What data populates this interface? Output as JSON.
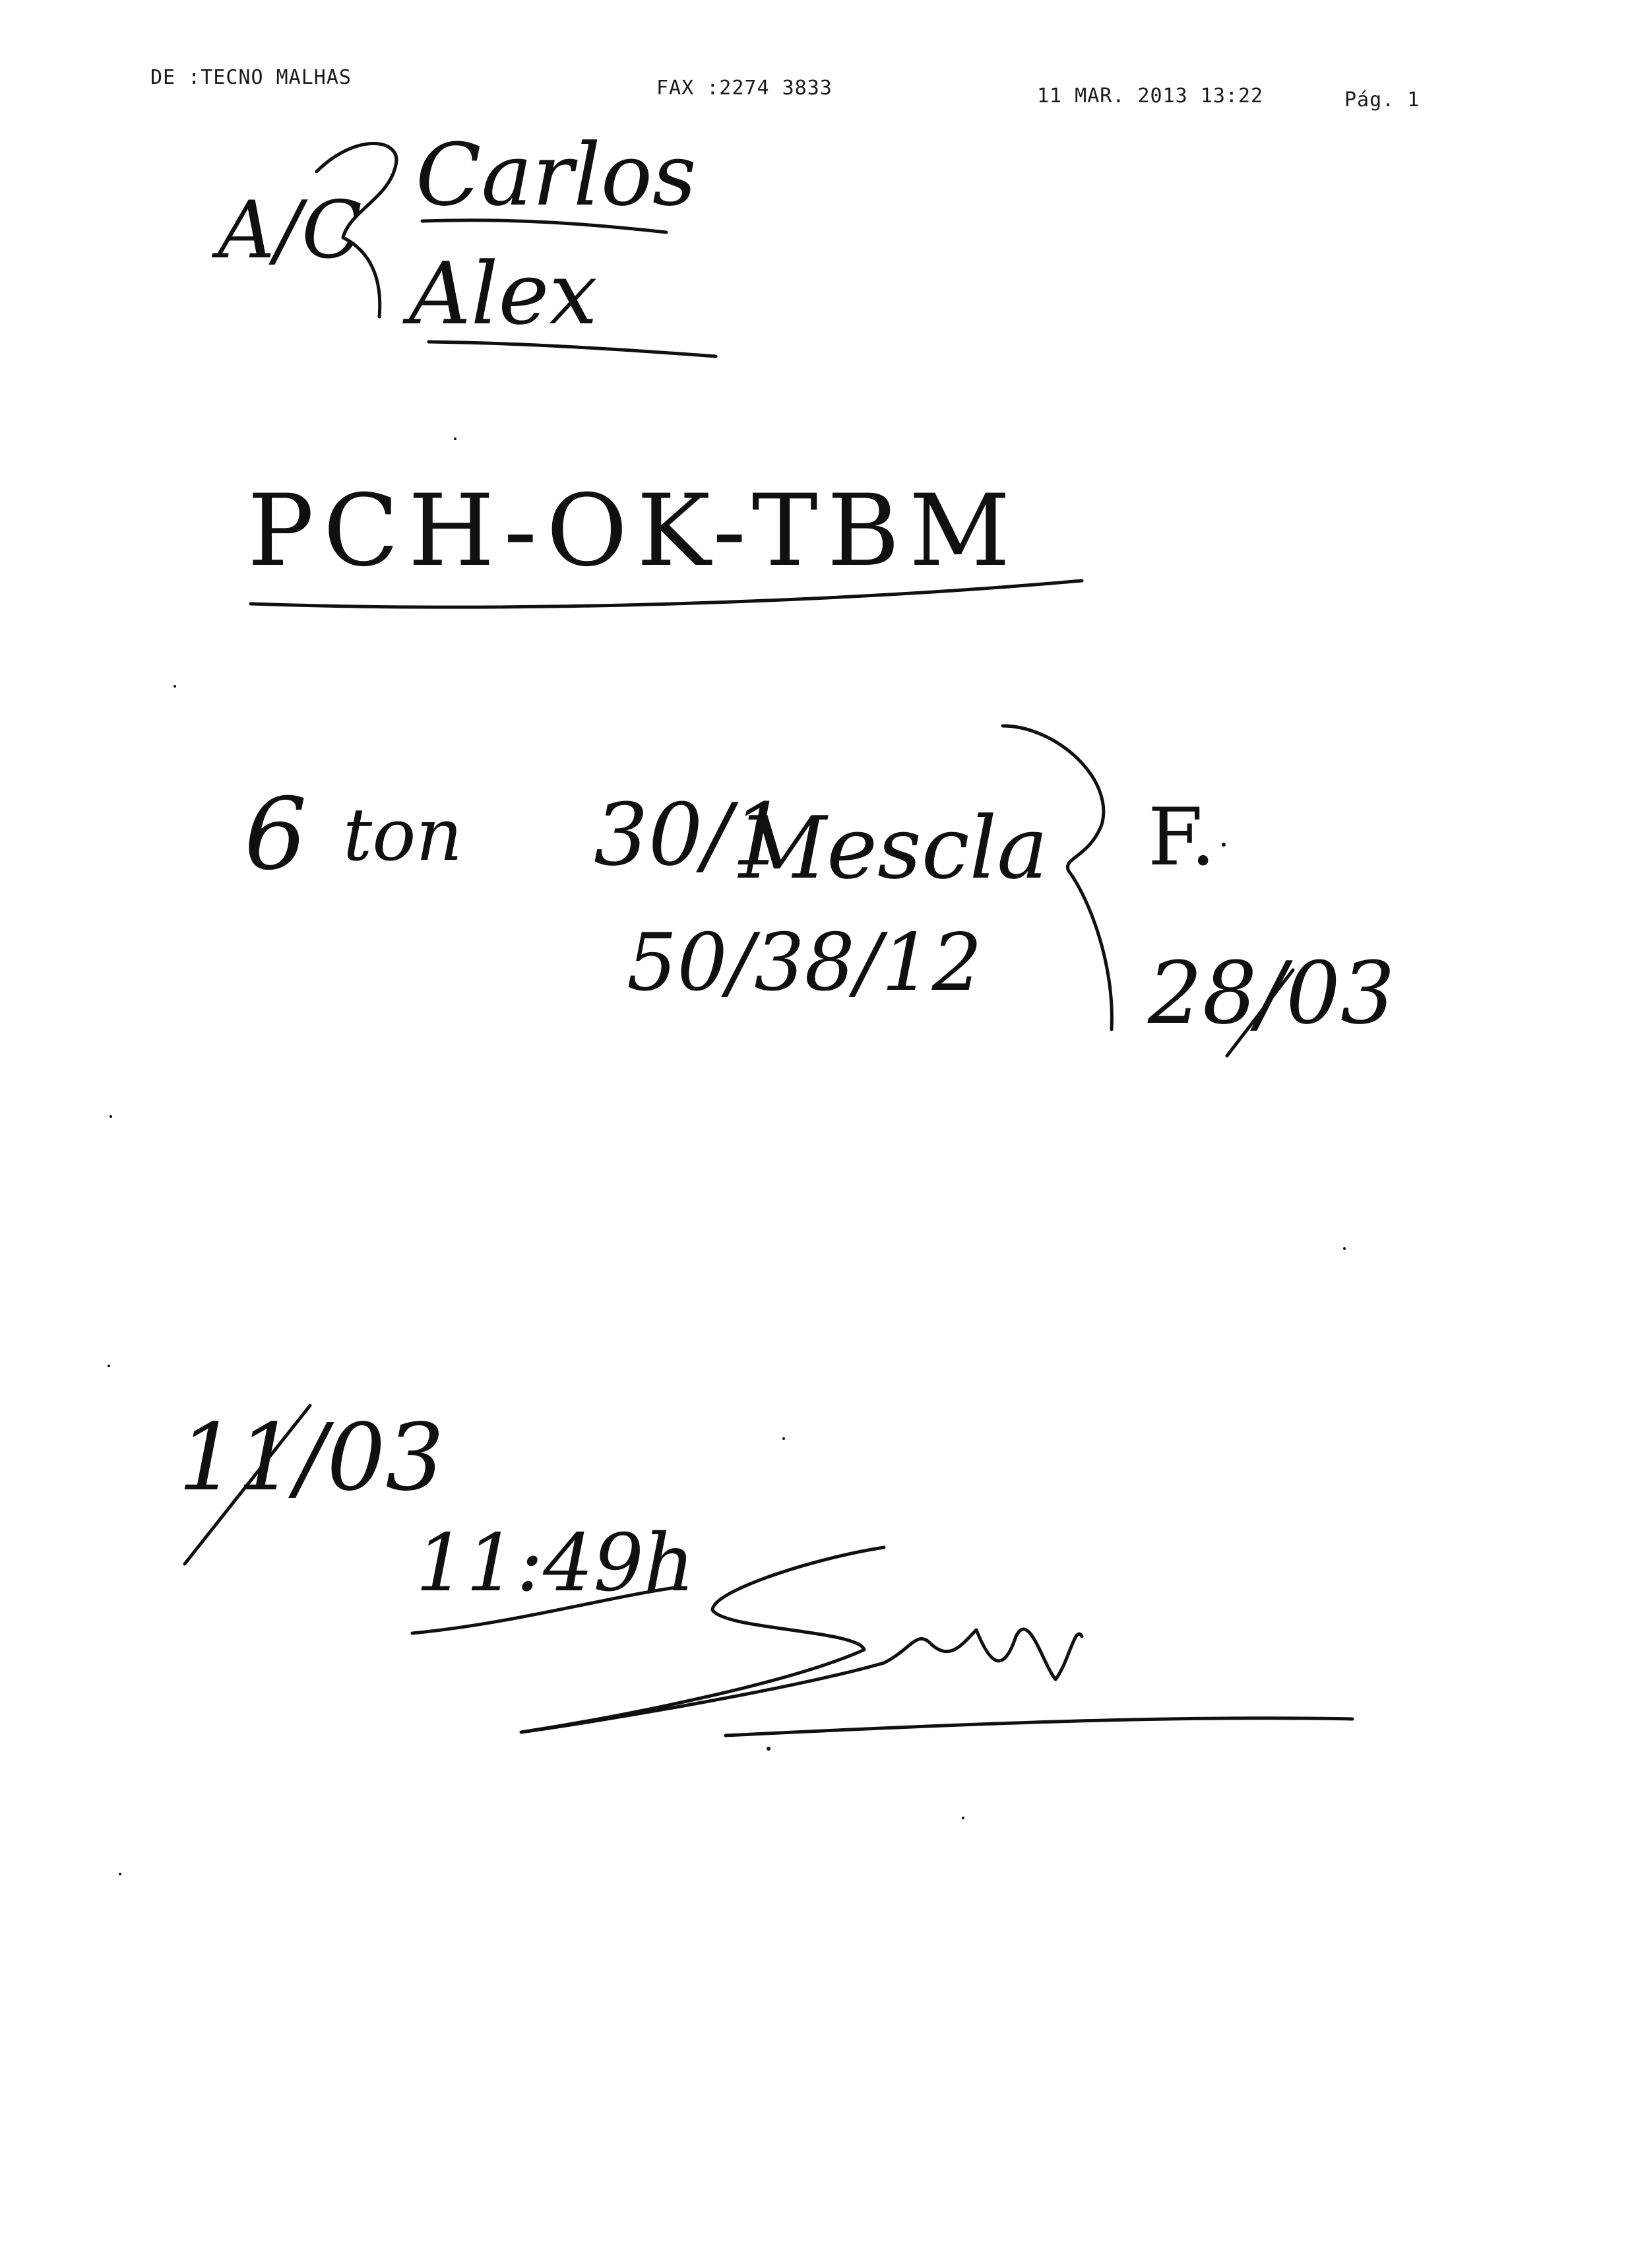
{
  "fax_header": {
    "from": "DE :TECNO MALHAS",
    "fax": "FAX :2274 3833",
    "datetime": "11 MAR. 2013 13:22",
    "page": "Pág. 1"
  },
  "attention": {
    "prefix": "A/C",
    "names": [
      "Carlos",
      "Alex"
    ]
  },
  "reference": {
    "code": "PCH-OK-TBM"
  },
  "order": {
    "quantity": "6",
    "unit": "ton",
    "yarn_count": "30/1",
    "yarn_type": "Mescla",
    "composition": "50/38/12",
    "delivery_label": "F.",
    "delivery_date": "28/03"
  },
  "sent": {
    "date": "11/03",
    "time": "11:49h"
  },
  "ink_color": "#101010"
}
